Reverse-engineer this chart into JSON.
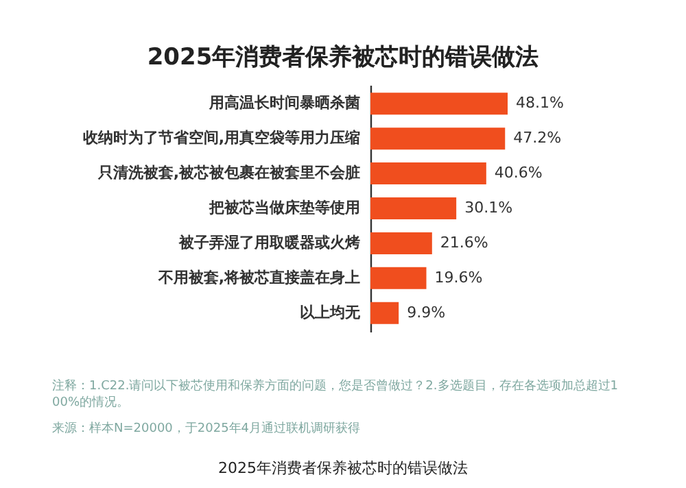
{
  "chart_data": {
    "type": "bar",
    "orientation": "horizontal",
    "title": "2025年消费者保养被芯时的错误做法",
    "categories": [
      "用高温长时间暴晒杀菌",
      "收纳时为了节省空间,用真空袋等用力压缩",
      "只清洗被套,被芯被包裹在被套里不会脏",
      "把被芯当做床垫等使用",
      "被子弄湿了用取暖器或火烤",
      "不用被套,将被芯直接盖在身上",
      "以上均无"
    ],
    "values": [
      48.1,
      47.2,
      40.6,
      30.1,
      21.6,
      19.6,
      9.9
    ],
    "value_labels": [
      "48.1%",
      "47.2%",
      "40.6%",
      "30.1%",
      "21.6%",
      "19.6%",
      "9.9%"
    ],
    "color": "#f04e1e",
    "annotations": [
      "注释：1.C22.请问以下被芯使用和保养方面的问题，您是否曾做过？2.多选题目，存在各选项加总超过100%的情况。",
      "来源：样本N=20000，于2025年4月通过联机调研获得",
      "2025年消费者保养被芯时的错误做法"
    ],
    "data_labels": false
  }
}
